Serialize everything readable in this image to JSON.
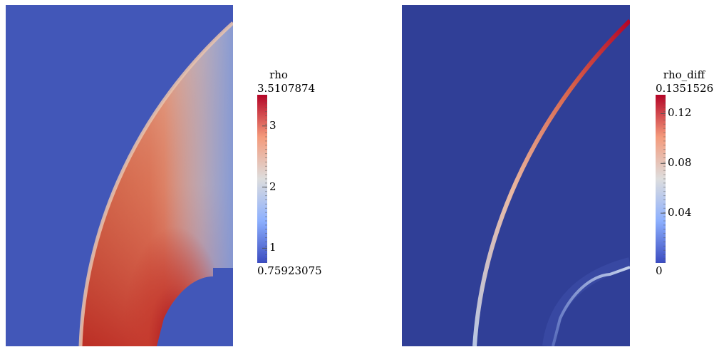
{
  "left_panel": {
    "field": "rho",
    "colorbar": {
      "title": "rho",
      "max_label": "3.5107874",
      "min_label": "0.75923075",
      "range": [
        0.75923075,
        3.5107874
      ],
      "ticks": [
        {
          "value": 3,
          "label": "3"
        },
        {
          "value": 2,
          "label": "2"
        },
        {
          "value": 1,
          "label": "1"
        }
      ]
    }
  },
  "right_panel": {
    "field": "rho_diff",
    "colorbar": {
      "title": "rho_diff",
      "max_label": "0.1351526",
      "min_label": "0",
      "range": [
        0,
        0.1351526
      ],
      "ticks": [
        {
          "value": 0.12,
          "label": "0.12"
        },
        {
          "value": 0.08,
          "label": "0.08"
        },
        {
          "value": 0.04,
          "label": "0.04"
        }
      ]
    }
  },
  "colors": {
    "cool": "#3b4cc0",
    "background_left": "#4257b8",
    "background_right": "#303f97",
    "mid": "#dddddd",
    "warm": "#b40426"
  }
}
